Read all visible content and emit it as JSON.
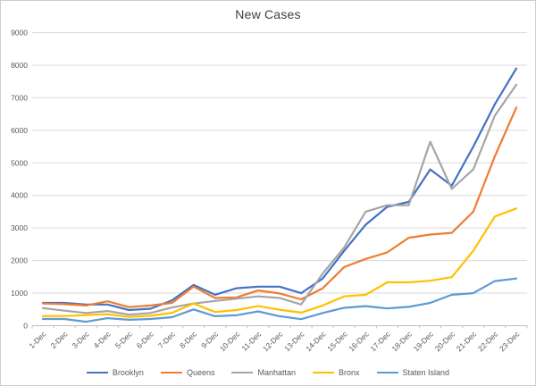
{
  "chart": {
    "title_label": "New Cases"
  },
  "chart_data": {
    "type": "line",
    "title": "New Cases",
    "categories": [
      "1-Dec",
      "2-Dec",
      "3-Dec",
      "4-Dec",
      "5-Dec",
      "6-Dec",
      "7-Dec",
      "8-Dec",
      "9-Dec",
      "10-Dec",
      "11-Dec",
      "12-Dec",
      "13-Dec",
      "14-Dec",
      "15-Dec",
      "16-Dec",
      "17-Dec",
      "18-Dec",
      "19-Dec",
      "20-Dec",
      "21-Dec",
      "22-Dec",
      "23-Dec"
    ],
    "series": [
      {
        "name": "Brooklyn",
        "color": "#4472C4",
        "values": [
          700,
          700,
          650,
          650,
          480,
          520,
          780,
          1250,
          950,
          1150,
          1200,
          1200,
          1000,
          1450,
          2300,
          3100,
          3650,
          3800,
          4800,
          4300,
          5500,
          6800,
          7900
        ]
      },
      {
        "name": "Queens",
        "color": "#ED7D31",
        "values": [
          680,
          660,
          620,
          750,
          570,
          620,
          700,
          1200,
          850,
          870,
          1080,
          990,
          810,
          1150,
          1800,
          2050,
          2250,
          2700,
          2800,
          2850,
          3500,
          5200,
          6700
        ]
      },
      {
        "name": "Manhattan",
        "color": "#A5A5A5",
        "values": [
          540,
          460,
          390,
          450,
          340,
          390,
          560,
          680,
          760,
          830,
          900,
          850,
          650,
          1600,
          2400,
          3500,
          3700,
          3700,
          5650,
          4200,
          4800,
          6450,
          7400
        ]
      },
      {
        "name": "Bronx",
        "color": "#FFC000",
        "values": [
          295,
          295,
          325,
          350,
          270,
          305,
          395,
          680,
          420,
          480,
          600,
          490,
          400,
          620,
          900,
          950,
          1330,
          1330,
          1380,
          1490,
          2300,
          3350,
          3600
        ]
      },
      {
        "name": "Staten Island",
        "color": "#5B9BD5",
        "values": [
          205,
          205,
          120,
          230,
          180,
          205,
          260,
          500,
          290,
          320,
          440,
          290,
          200,
          390,
          550,
          600,
          530,
          580,
          700,
          950,
          1000,
          1370,
          1450
        ]
      }
    ],
    "ylim": [
      0,
      9000
    ],
    "y_tick_labels": [
      "0",
      "1000",
      "2000",
      "3000",
      "4000",
      "5000",
      "6000",
      "7000",
      "8000",
      "9000"
    ],
    "grid": true,
    "legend_position": "bottom",
    "axis_color": "#BFBFBF",
    "gridline_color": "#D9D9D9",
    "label_color": "#595959"
  }
}
